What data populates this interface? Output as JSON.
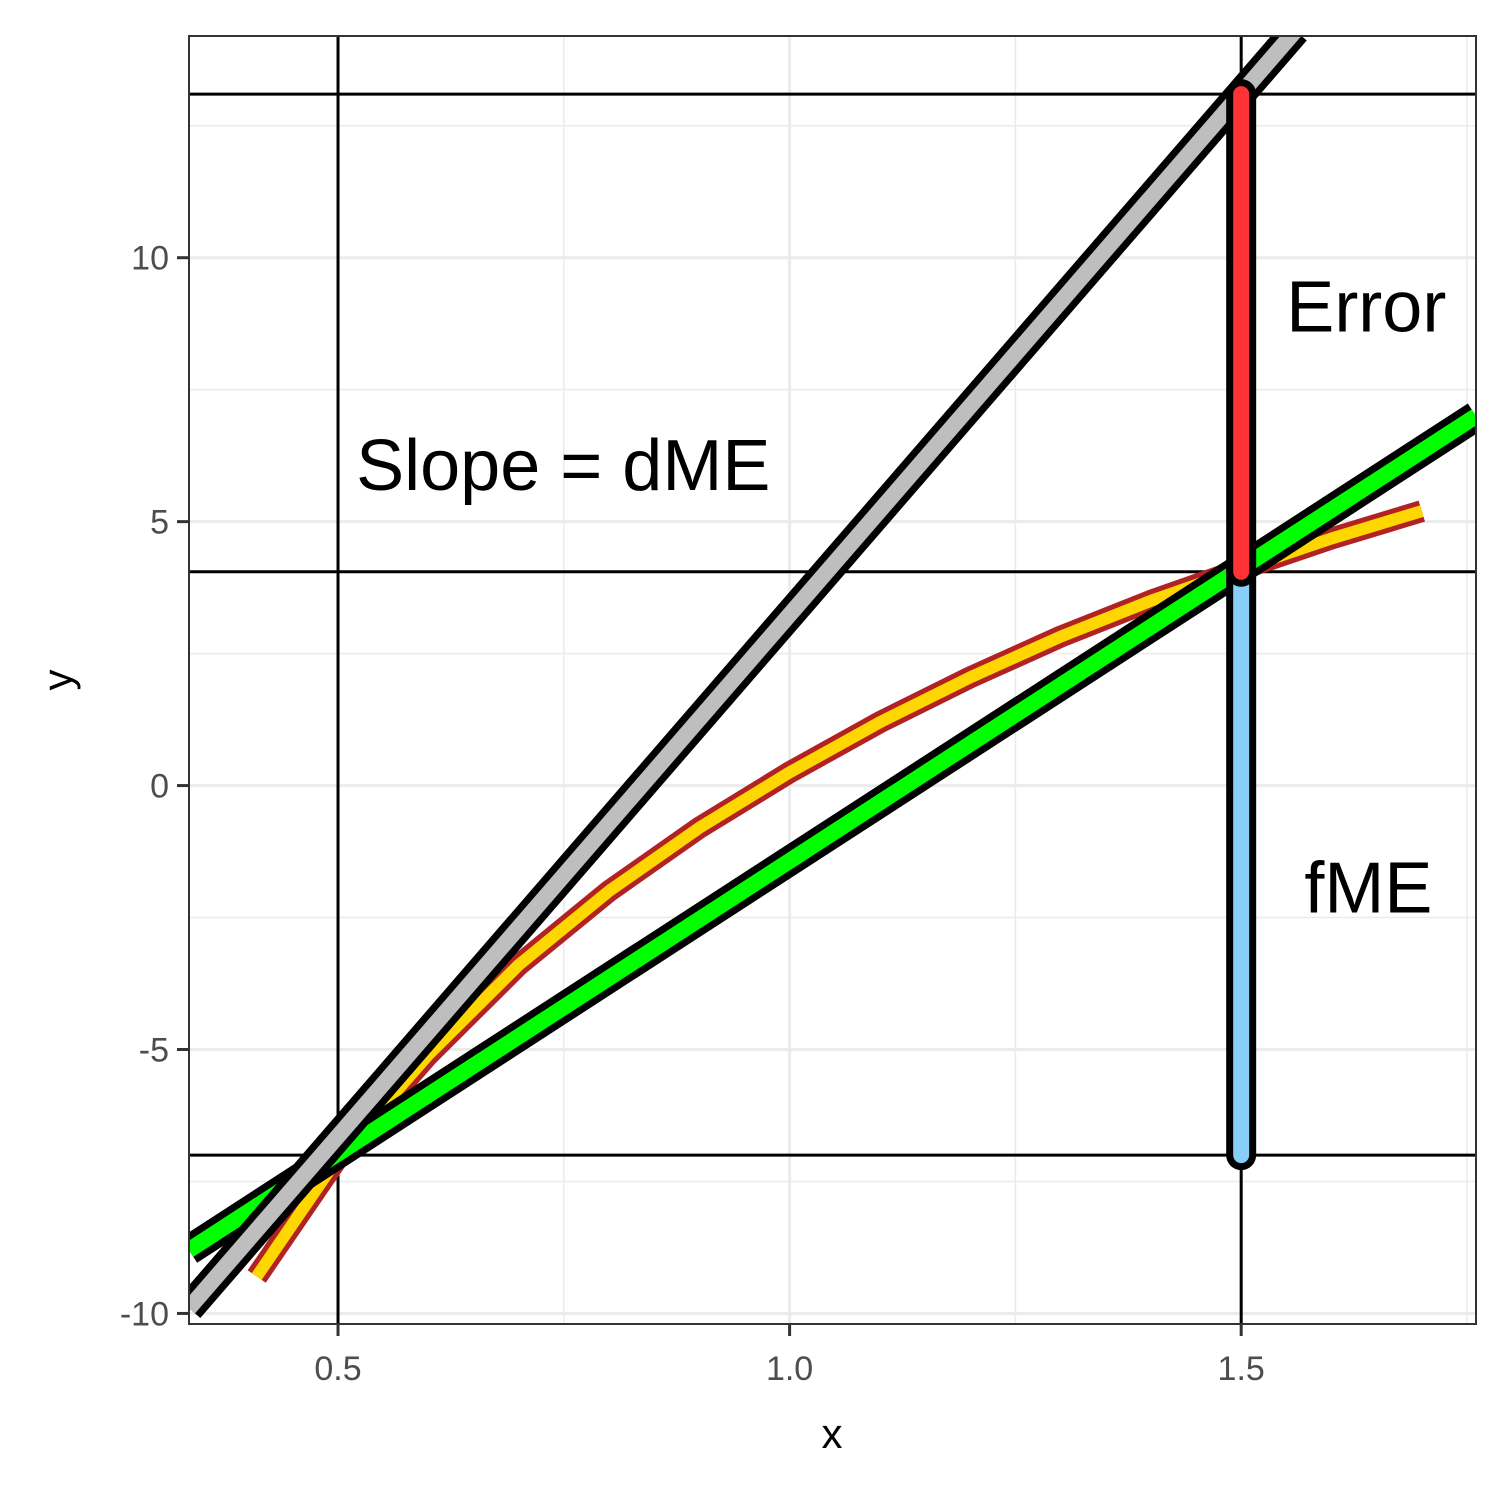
{
  "chart_data": {
    "type": "line",
    "title": "",
    "xlabel": "x",
    "ylabel": "y",
    "xlim": [
      0.335,
      1.76
    ],
    "ylim": [
      -10.2,
      14.2
    ],
    "x_ticks": [
      0.5,
      1.0,
      1.5
    ],
    "x_tick_labels": [
      "0.5",
      "1.0",
      "1.5"
    ],
    "y_ticks": [
      -10,
      -5,
      0,
      5,
      10
    ],
    "y_tick_labels": [
      "-10",
      "-5",
      "0",
      "5",
      "10"
    ],
    "grid": true,
    "reference_lines": {
      "vertical_x": [
        0.5,
        1.5
      ],
      "horizontal_y": [
        -7,
        4.05,
        13.1
      ]
    },
    "series": [
      {
        "kind": "curve",
        "x": [
          0.41,
          0.5,
          0.6,
          0.7,
          0.8,
          0.9,
          1.0,
          1.1,
          1.2,
          1.3,
          1.4,
          1.5,
          1.6,
          1.7
        ],
        "y": [
          -9.3,
          -7.05,
          -5.1,
          -3.4,
          -2.0,
          -0.8,
          0.25,
          1.2,
          2.05,
          2.82,
          3.5,
          4.1,
          4.68,
          5.2
        ],
        "color": "#b22222",
        "fill_color": "#ffd700"
      },
      {
        "kind": "tangent",
        "x": [
          0.335,
          1.76
        ],
        "y": [
          -8.8,
          7.0
        ],
        "color": "#00ff00"
      },
      {
        "kind": "slope-line",
        "x": [
          0.335,
          1.56
        ],
        "y": [
          -9.9,
          14.3
        ],
        "color": "#bebebe"
      }
    ],
    "segments": [
      {
        "name": "error",
        "x": 1.5,
        "y": [
          4.05,
          13.1
        ],
        "color": "#ff3333"
      },
      {
        "name": "fme",
        "x": 1.5,
        "y": [
          -7,
          4.05
        ],
        "color": "#87cefa"
      }
    ],
    "annotations": [
      {
        "text": "Slope = dME",
        "x": 0.52,
        "y": 5.6
      },
      {
        "text": "Error",
        "x": 1.55,
        "y": 8.6
      },
      {
        "text": "fME",
        "x": 1.57,
        "y": -2.4
      }
    ]
  }
}
